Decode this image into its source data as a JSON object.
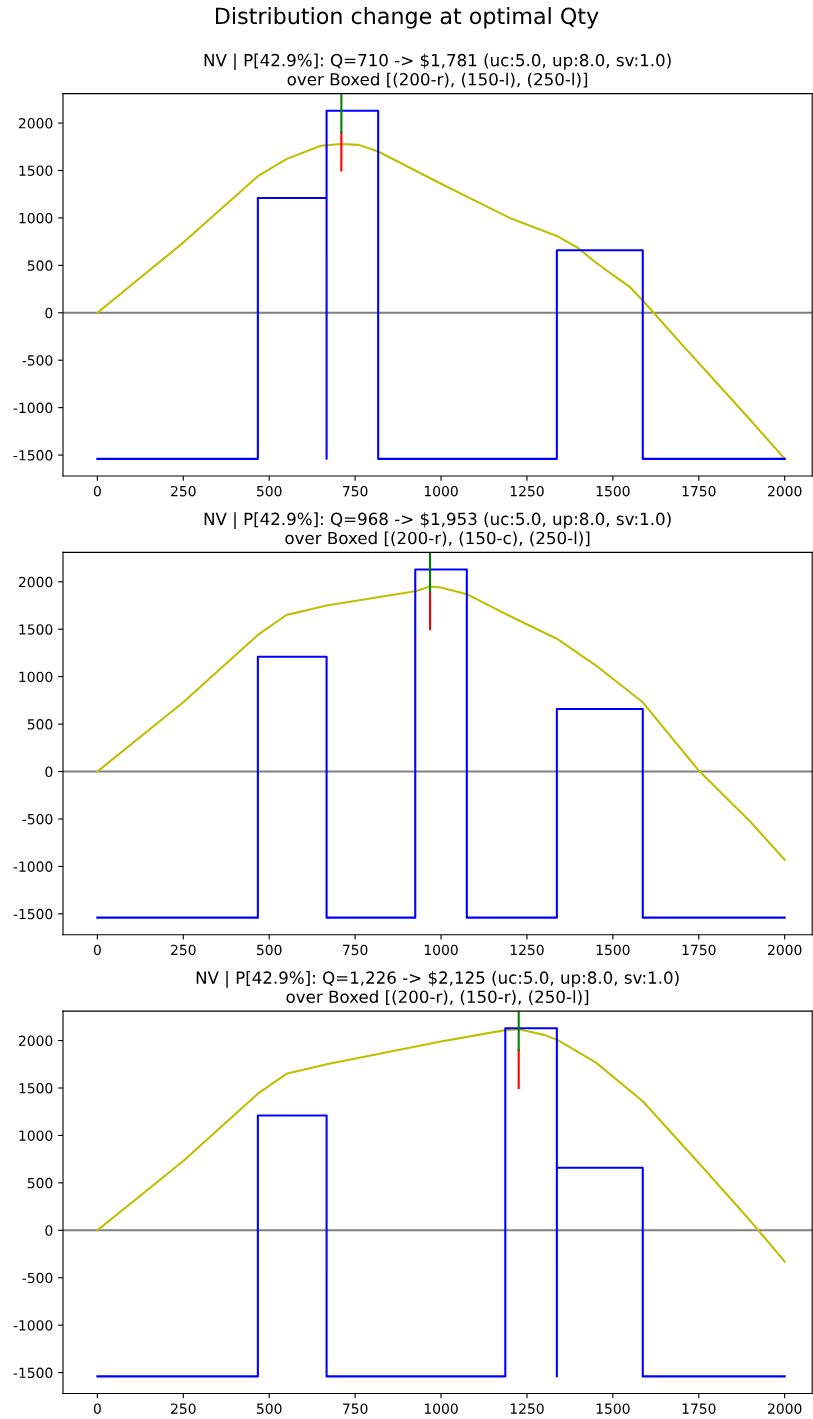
{
  "chart_data": [
    {
      "type": "line",
      "title": "NV | P[42.9%]: Q=710 -> $1,781 (uc:5.0, up:8.0, sv:1.0)\nover Boxed [(200-r), (150-l), (250-l)]",
      "annotations": [
        "Distribution change at optimal Qty"
      ],
      "xlim": [
        -100,
        2080
      ],
      "ylim": [
        -1720,
        2310
      ],
      "xticks": [
        0,
        250,
        500,
        750,
        1000,
        1250,
        1500,
        1750,
        2000
      ],
      "yticks": [
        -1500,
        -1000,
        -500,
        0,
        500,
        1000,
        1500,
        2000
      ],
      "grid": false,
      "legend": false,
      "ref_lines": [
        {
          "axis": "y",
          "value": 0,
          "color": "#808080"
        }
      ],
      "series": [
        {
          "color": "#bfbf00",
          "x": [
            0,
            250,
            467,
            550,
            650,
            710,
            760,
            817,
            1000,
            1200,
            1337,
            1400,
            1450,
            1500,
            1550,
            1587,
            1700,
            1800,
            1900,
            2000
          ],
          "values": [
            0,
            740,
            1440,
            1620,
            1760,
            1780,
            1770,
            1700,
            1360,
            1000,
            810,
            680,
            530,
            400,
            270,
            130,
            -330,
            -730,
            -1130,
            -1540
          ]
        },
        {
          "color": "#0000ff",
          "x": [
            0,
            467,
            467,
            667,
            667,
            667,
            817,
            817,
            1337,
            1337,
            1587,
            1587,
            2000
          ],
          "values": [
            -1540,
            -1540,
            1210,
            1210,
            -1540,
            2130,
            2130,
            -1540,
            -1540,
            660,
            660,
            -1540,
            -1540
          ]
        },
        {
          "color": "#ff0000",
          "x": [
            710,
            710
          ],
          "values": [
            1500,
            1900
          ]
        },
        {
          "color": "#008000",
          "x": [
            710,
            710
          ],
          "values": [
            1900,
            2310
          ]
        }
      ]
    },
    {
      "type": "line",
      "title": "NV | P[42.9%]: Q=968 -> $1,953 (uc:5.0, up:8.0, sv:1.0)\nover Boxed [(200-r), (150-c), (250-l)]",
      "xlim": [
        -100,
        2080
      ],
      "ylim": [
        -1720,
        2310
      ],
      "xticks": [
        0,
        250,
        500,
        750,
        1000,
        1250,
        1500,
        1750,
        2000
      ],
      "yticks": [
        -1500,
        -1000,
        -500,
        0,
        500,
        1000,
        1500,
        2000
      ],
      "grid": false,
      "legend": false,
      "ref_lines": [
        {
          "axis": "y",
          "value": 0,
          "color": "#808080"
        }
      ],
      "series": [
        {
          "color": "#bfbf00",
          "x": [
            0,
            250,
            467,
            550,
            667,
            925,
            968,
            1000,
            1075,
            1200,
            1337,
            1450,
            1587,
            1750,
            1900,
            2000
          ],
          "values": [
            0,
            730,
            1440,
            1650,
            1750,
            1900,
            1950,
            1940,
            1870,
            1640,
            1400,
            1120,
            730,
            10,
            -530,
            -930
          ]
        },
        {
          "color": "#0000ff",
          "x": [
            0,
            467,
            467,
            667,
            667,
            925,
            925,
            1075,
            1075,
            1337,
            1337,
            1587,
            1587,
            2000
          ],
          "values": [
            -1540,
            -1540,
            1210,
            1210,
            -1540,
            -1540,
            2130,
            2130,
            -1540,
            -1540,
            660,
            660,
            -1540,
            -1540
          ]
        },
        {
          "color": "#ff0000",
          "x": [
            968,
            968
          ],
          "values": [
            1500,
            1900
          ]
        },
        {
          "color": "#008000",
          "x": [
            968,
            968
          ],
          "values": [
            1900,
            2310
          ]
        }
      ]
    },
    {
      "type": "line",
      "title": "NV | P[42.9%]: Q=1,226 -> $2,125 (uc:5.0, up:8.0, sv:1.0)\nover Boxed [(200-r), (150-r), (250-l)]",
      "xlim": [
        -100,
        2080
      ],
      "ylim": [
        -1720,
        2310
      ],
      "xticks": [
        0,
        250,
        500,
        750,
        1000,
        1250,
        1500,
        1750,
        2000
      ],
      "yticks": [
        -1500,
        -1000,
        -500,
        0,
        500,
        1000,
        1500,
        2000
      ],
      "grid": false,
      "legend": false,
      "ref_lines": [
        {
          "axis": "y",
          "value": 0,
          "color": "#808080"
        }
      ],
      "series": [
        {
          "color": "#bfbf00",
          "x": [
            0,
            250,
            467,
            550,
            667,
            1000,
            1187,
            1226,
            1300,
            1337,
            1450,
            1587,
            1750,
            1900,
            2000
          ],
          "values": [
            0,
            730,
            1440,
            1650,
            1750,
            1990,
            2110,
            2120,
            2060,
            2010,
            1770,
            1360,
            710,
            100,
            -330
          ]
        },
        {
          "color": "#0000ff",
          "x": [
            0,
            467,
            467,
            667,
            667,
            1187,
            1187,
            1337,
            1337,
            1337,
            1587,
            1587,
            2000
          ],
          "values": [
            -1540,
            -1540,
            1210,
            1210,
            -1540,
            -1540,
            2130,
            2130,
            -1540,
            660,
            660,
            -1540,
            -1540
          ]
        },
        {
          "color": "#ff0000",
          "x": [
            1226,
            1226
          ],
          "values": [
            1500,
            1900
          ]
        },
        {
          "color": "#008000",
          "x": [
            1226,
            1226
          ],
          "values": [
            1900,
            2310
          ]
        }
      ]
    }
  ]
}
